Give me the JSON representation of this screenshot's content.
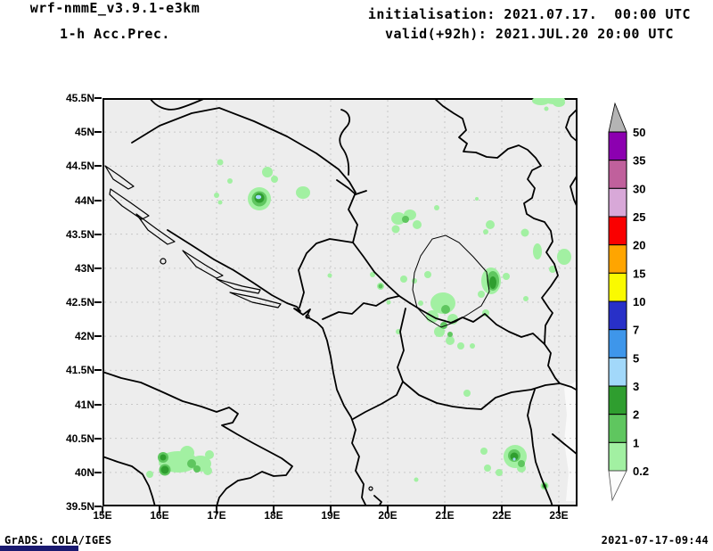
{
  "header": {
    "model": "wrf-nmmE_v3.9.1-e3km",
    "field": "1-h Acc.Prec.",
    "init_label": "initialisation: 2021.07.17.  00:00 UTC",
    "valid_label": "valid(+92h): 2021.JUL.20 20:00 UTC"
  },
  "map": {
    "lat_ticks": [
      "45.5N",
      "45N",
      "44.5N",
      "44N",
      "43.5N",
      "43N",
      "42.5N",
      "42N",
      "41.5N",
      "41N",
      "40.5N",
      "40N",
      "39.5N"
    ],
    "lon_ticks": [
      "15E",
      "16E",
      "17E",
      "18E",
      "19E",
      "20E",
      "21E",
      "22E",
      "23E"
    ],
    "background": "#ededed",
    "grid_color": "#c8c8c8",
    "border_color": "#000000"
  },
  "colorbar": {
    "labels": [
      "50",
      "35",
      "30",
      "25",
      "20",
      "15",
      "10",
      "7",
      "5",
      "3",
      "2",
      "1",
      "0.2"
    ],
    "colors": [
      "#8c00b0",
      "#c0609c",
      "#d8a8d8",
      "#fa0000",
      "#ffa500",
      "#fafa00",
      "#2830c8",
      "#3e96ea",
      "#a2d8fa",
      "#2f9e2f",
      "#5fc65f",
      "#a2f0a2"
    ],
    "above_color": "#b4b4b4",
    "below_color": "#fcfcfc"
  },
  "precip_legend_note": {
    "levels_mm": [
      0.2,
      1,
      2,
      3,
      5,
      7,
      10,
      15,
      20,
      25,
      30,
      35,
      50
    ]
  },
  "footer": {
    "left": "GrADS: COLA/IGES",
    "right": "2021-07-17-09:44"
  }
}
